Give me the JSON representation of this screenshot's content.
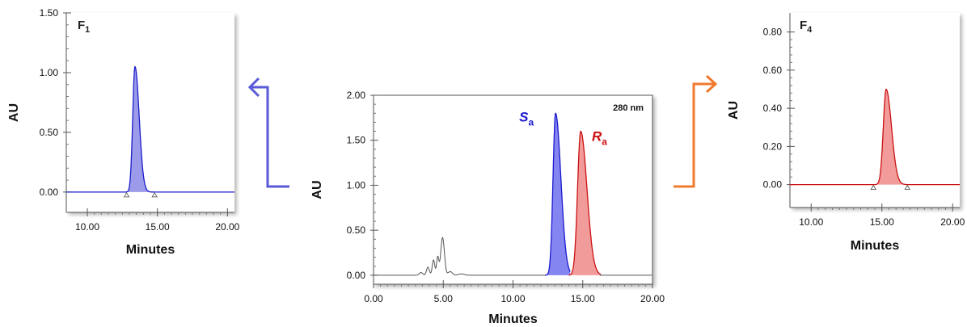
{
  "chart_data": [
    {
      "id": "F1",
      "type": "line",
      "panel_label": "F",
      "panel_sub": "1",
      "xlabel": "Minutes",
      "ylabel": "AU",
      "xlim": [
        8.5,
        20.5
      ],
      "ylim": [
        -0.17,
        1.5
      ],
      "xticks": [
        "10.00",
        "15.00",
        "20.00"
      ],
      "xtick_values": [
        10,
        15,
        20
      ],
      "yticks": [
        "0.00",
        "0.50",
        "1.00",
        "1.50"
      ],
      "ytick_values": [
        0,
        0.5,
        1.0,
        1.5
      ],
      "line_color": "#1c1ccc",
      "fill_color": "#8a8ae6",
      "peaks": [
        {
          "center": 13.4,
          "height": 1.05,
          "sigma_left": 0.16,
          "sigma_right": 0.3,
          "fill_from": 12.8,
          "fill_to": 14.8
        }
      ],
      "baseline_markers": [
        12.8,
        14.8
      ]
    },
    {
      "id": "main",
      "type": "line",
      "xlabel": "Minutes",
      "ylabel": "AU",
      "annotation": "280 nm",
      "xlim": [
        0,
        20
      ],
      "ylim": [
        -0.1,
        2.0
      ],
      "xticks": [
        "0.00",
        "5.00",
        "10.00",
        "15.00",
        "20.00"
      ],
      "xtick_values": [
        0,
        5,
        10,
        15,
        20
      ],
      "yticks": [
        "0.00",
        "0.50",
        "1.00",
        "1.50",
        "2.00"
      ],
      "ytick_values": [
        0,
        0.5,
        1.0,
        1.5,
        2.0
      ],
      "series": [
        {
          "name": "S",
          "sub": "a",
          "color": "#1a1ad0",
          "fill": "#7070ee",
          "center": 13.05,
          "height": 1.8,
          "sigma_left": 0.18,
          "sigma_right": 0.38,
          "fill_from": 12.4,
          "fill_to": 14.1
        },
        {
          "name": "R",
          "sub": "a",
          "color": "#cc1111",
          "fill": "#ee8a8a",
          "center": 14.85,
          "height": 1.6,
          "sigma_left": 0.22,
          "sigma_right": 0.45,
          "fill_from": 14.1,
          "fill_to": 16.2
        }
      ],
      "minor_peaks": [
        {
          "center": 3.4,
          "height": 0.03,
          "sigma": 0.12
        },
        {
          "center": 3.9,
          "height": 0.09,
          "sigma": 0.1
        },
        {
          "center": 4.3,
          "height": 0.17,
          "sigma": 0.09
        },
        {
          "center": 4.6,
          "height": 0.2,
          "sigma": 0.08
        },
        {
          "center": 4.95,
          "height": 0.42,
          "sigma": 0.13
        },
        {
          "center": 5.5,
          "height": 0.04,
          "sigma": 0.15
        },
        {
          "center": 6.3,
          "height": 0.015,
          "sigma": 0.2
        }
      ]
    },
    {
      "id": "F4",
      "type": "line",
      "panel_label": "F",
      "panel_sub": "4",
      "xlabel": "Minutes",
      "ylabel": "AU",
      "xlim": [
        8.5,
        20.5
      ],
      "ylim": [
        -0.12,
        0.9
      ],
      "xticks": [
        "10.00",
        "15.00",
        "20.00"
      ],
      "xtick_values": [
        10,
        15,
        20
      ],
      "yticks": [
        "0.00",
        "0.20",
        "0.40",
        "0.60",
        "0.80"
      ],
      "ytick_values": [
        0,
        0.2,
        0.4,
        0.6,
        0.8
      ],
      "line_color": "#cc1111",
      "fill_color": "#ee8a8a",
      "peaks": [
        {
          "center": 15.3,
          "height": 0.5,
          "sigma_left": 0.2,
          "sigma_right": 0.38,
          "fill_from": 14.4,
          "fill_to": 16.8
        }
      ],
      "baseline_markers": [
        14.4,
        16.8
      ]
    }
  ],
  "arrows": {
    "left_color": "#5a5ad8",
    "right_color": "#f07a2e"
  }
}
